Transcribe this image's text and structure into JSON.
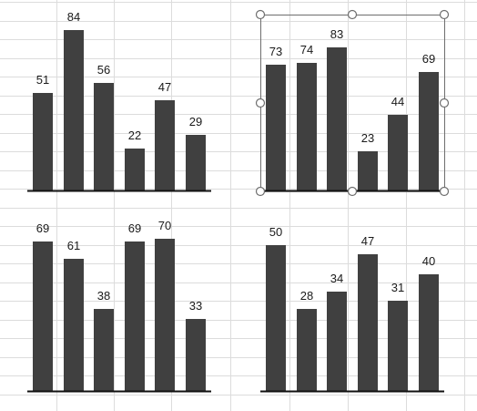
{
  "colors": {
    "bar": "#404040",
    "axis": "#111111",
    "grid": "#dcdcdc",
    "background": "#ffffff",
    "selection": "#6e6e6e"
  },
  "selected_chart_index": 1,
  "chart_data": [
    {
      "type": "bar",
      "values": [
        51,
        84,
        56,
        22,
        47,
        29
      ],
      "title": "",
      "xlabel": "",
      "ylabel": "",
      "grid": false,
      "legend": "none"
    },
    {
      "type": "bar",
      "values": [
        73,
        74,
        83,
        23,
        44,
        69
      ],
      "title": "",
      "xlabel": "",
      "ylabel": "",
      "grid": false,
      "legend": "none"
    },
    {
      "type": "bar",
      "values": [
        69,
        61,
        38,
        69,
        70,
        33
      ],
      "title": "",
      "xlabel": "",
      "ylabel": "",
      "grid": false,
      "legend": "none"
    },
    {
      "type": "bar",
      "values": [
        50,
        28,
        34,
        47,
        31,
        40
      ],
      "title": "",
      "xlabel": "",
      "ylabel": "",
      "grid": false,
      "legend": "none"
    }
  ]
}
